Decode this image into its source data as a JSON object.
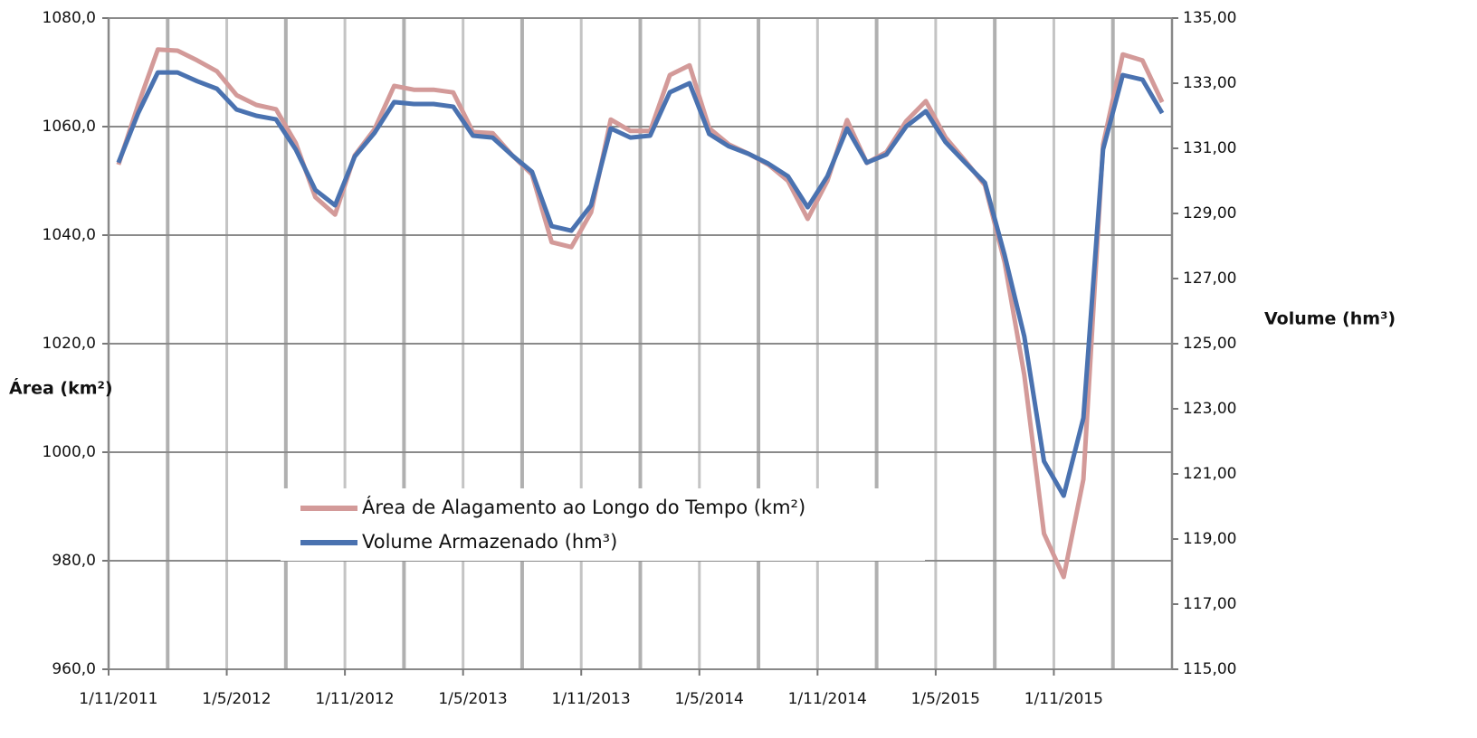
{
  "chart_data": {
    "type": "line",
    "categories": [
      "1/11/2011",
      null,
      null,
      null,
      null,
      null,
      "1/5/2012",
      null,
      null,
      null,
      null,
      null,
      "1/11/2012",
      null,
      null,
      null,
      null,
      null,
      "1/5/2013",
      null,
      null,
      null,
      null,
      null,
      "1/11/2013",
      null,
      null,
      null,
      null,
      null,
      "1/5/2014",
      null,
      null,
      null,
      null,
      null,
      "1/11/2014",
      null,
      null,
      null,
      null,
      null,
      "1/5/2015",
      null,
      null,
      null,
      null,
      null,
      "1/11/2015",
      null,
      null,
      null,
      null,
      null
    ],
    "ylabel": "Área (km²)",
    "y2label": "Volume (hm³)",
    "ylim": [
      960,
      1080
    ],
    "yticks": [
      {
        "value": 960,
        "label": "960,0"
      },
      {
        "value": 980,
        "label": "980,0"
      },
      {
        "value": 1000,
        "label": "1000,0"
      },
      {
        "value": 1020,
        "label": "1020,0"
      },
      {
        "value": 1040,
        "label": "1040,0"
      },
      {
        "value": 1060,
        "label": "1060,0"
      },
      {
        "value": 1080,
        "label": "1080,0"
      }
    ],
    "y2lim": [
      115,
      135
    ],
    "y2ticks": [
      {
        "value": 115,
        "label": "115,00"
      },
      {
        "value": 117,
        "label": "117,00"
      },
      {
        "value": 119,
        "label": "119,00"
      },
      {
        "value": 121,
        "label": "121,00"
      },
      {
        "value": 123,
        "label": "123,00"
      },
      {
        "value": 125,
        "label": "125,00"
      },
      {
        "value": 127,
        "label": "127,00"
      },
      {
        "value": 129,
        "label": "129,00"
      },
      {
        "value": 131,
        "label": "131,00"
      },
      {
        "value": 133,
        "label": "133,00"
      },
      {
        "value": 135,
        "label": "135,00"
      }
    ],
    "grid": true,
    "legend": "lower center",
    "series": [
      {
        "name": "Área de Alagamento ao Longo do Tempo (km²)",
        "color": "#d39a99",
        "values": [
          1053,
          1064,
          1074.2,
          1074,
          1072.2,
          1070.2,
          1065.8,
          1064,
          1063.2,
          1057,
          1047,
          1043.8,
          1054.7,
          1059.5,
          1067.5,
          1066.8,
          1066.8,
          1066.3,
          1059,
          1058.8,
          1054.7,
          1051.2,
          1038.7,
          1037.8,
          1044.2,
          1061.3,
          1059.2,
          1059.2,
          1069.5,
          1071.3,
          1059.7,
          1056.7,
          1055,
          1053,
          1050,
          1043,
          1050,
          1061.2,
          1053.3,
          1055.3,
          1061,
          1064.7,
          1058,
          1053.7,
          1049.2,
          1035,
          1014.2,
          985,
          977,
          995,
          1056.7,
          1073.3,
          1072.2,
          1064.5
        ]
      },
      {
        "name": "Volume Armazenado (hm³)",
        "color": "#4a72b0",
        "axis": "y2",
        "values": [
          130.56,
          132.08,
          133.33,
          133.33,
          133.06,
          132.83,
          132.19,
          132.0,
          131.89,
          130.97,
          129.72,
          129.25,
          130.75,
          131.47,
          132.42,
          132.36,
          132.36,
          132.28,
          131.39,
          131.33,
          130.78,
          130.28,
          128.61,
          128.47,
          129.25,
          131.61,
          131.33,
          131.39,
          132.72,
          133.0,
          131.44,
          131.06,
          130.83,
          130.53,
          130.14,
          129.19,
          130.14,
          131.61,
          130.56,
          130.81,
          131.67,
          132.14,
          131.19,
          130.56,
          129.94,
          127.72,
          125.22,
          121.39,
          120.33,
          122.72,
          130.97,
          133.25,
          133.11,
          132.08
        ]
      }
    ]
  }
}
